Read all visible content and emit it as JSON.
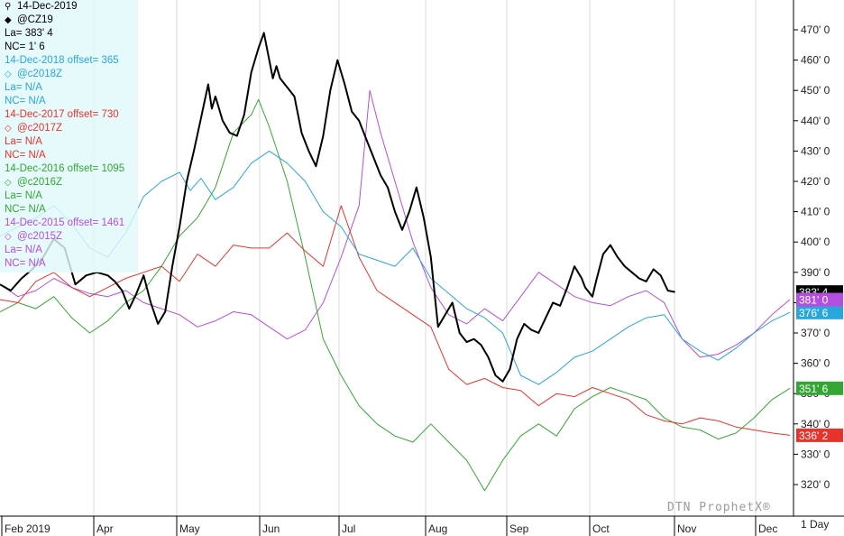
{
  "chart_data": {
    "type": "line",
    "header_date": "14-Dec-2019",
    "x_months": [
      "Feb 2019",
      "Apr",
      "May",
      "Jun",
      "Jul",
      "Aug",
      "Sep",
      "Oct",
      "Nov",
      "Dec"
    ],
    "y_ticks": [
      "470' 0",
      "460' 0",
      "450' 0",
      "440' 0",
      "430' 0",
      "420' 0",
      "410' 0",
      "400' 0",
      "390' 0",
      "380' 0",
      "370' 0",
      "360' 0",
      "350' 0",
      "340' 0",
      "330' 0",
      "320' 0"
    ],
    "ylim": [
      312,
      478
    ],
    "interval_label": "1 Day",
    "watermark": "DTN ProphetX®",
    "legend": {
      "symbol": "@CZ19",
      "last": "La= 383' 4",
      "net_change": "NC= 1' 6",
      "groups": [
        {
          "date_line": "14-Dec-2018 offset= 365",
          "symbol": "@c2018Z",
          "last": "La= N/A",
          "net_change": "NC= N/A"
        },
        {
          "date_line": "14-Dec-2017 offset= 730",
          "symbol": "@c2017Z",
          "last": "La= N/A",
          "net_change": "NC= N/A"
        },
        {
          "date_line": "14-Dec-2016 offset= 1095",
          "symbol": "@c2016Z",
          "last": "La= N/A",
          "net_change": "NC= N/A"
        },
        {
          "date_line": "14-Dec-2015 offset= 1461",
          "symbol": "@c2015Z",
          "last": "La= N/A",
          "net_change": "NC= N/A"
        }
      ]
    },
    "series": [
      {
        "name": "@CZ19",
        "color": "#000000",
        "last_label": "383' 4",
        "width": 2,
        "points": [
          [
            0,
            386
          ],
          [
            0.3,
            384
          ],
          [
            0.6,
            388
          ],
          [
            0.9,
            391
          ],
          [
            1.2,
            395
          ],
          [
            1.5,
            401
          ],
          [
            1.8,
            398
          ],
          [
            2.1,
            386
          ],
          [
            2.4,
            389
          ],
          [
            2.7,
            390
          ],
          [
            3.0,
            389
          ],
          [
            3.2,
            387
          ],
          [
            3.4,
            384
          ],
          [
            3.6,
            378
          ],
          [
            3.8,
            383
          ],
          [
            4.0,
            389
          ],
          [
            4.2,
            380
          ],
          [
            4.4,
            373
          ],
          [
            4.6,
            377
          ],
          [
            4.8,
            392
          ],
          [
            5.0,
            405
          ],
          [
            5.2,
            420
          ],
          [
            5.4,
            430
          ],
          [
            5.6,
            441
          ],
          [
            5.8,
            452
          ],
          [
            5.9,
            444
          ],
          [
            6.0,
            448
          ],
          [
            6.2,
            440
          ],
          [
            6.4,
            436
          ],
          [
            6.6,
            435
          ],
          [
            6.8,
            442
          ],
          [
            7.0,
            456
          ],
          [
            7.2,
            464
          ],
          [
            7.35,
            469
          ],
          [
            7.5,
            460
          ],
          [
            7.6,
            454
          ],
          [
            7.7,
            458
          ],
          [
            7.8,
            454
          ],
          [
            8.0,
            451
          ],
          [
            8.2,
            448
          ],
          [
            8.4,
            436
          ],
          [
            8.6,
            430
          ],
          [
            8.8,
            425
          ],
          [
            9.0,
            435
          ],
          [
            9.2,
            450
          ],
          [
            9.4,
            460
          ],
          [
            9.6,
            452
          ],
          [
            9.8,
            443
          ],
          [
            10.0,
            440
          ],
          [
            10.2,
            434
          ],
          [
            10.4,
            428
          ],
          [
            10.6,
            422
          ],
          [
            10.8,
            418
          ],
          [
            11.0,
            410
          ],
          [
            11.2,
            404
          ],
          [
            11.4,
            410
          ],
          [
            11.6,
            418
          ],
          [
            11.8,
            408
          ],
          [
            12.0,
            395
          ],
          [
            12.2,
            372
          ],
          [
            12.4,
            376
          ],
          [
            12.6,
            380
          ],
          [
            12.8,
            370
          ],
          [
            13.0,
            367
          ],
          [
            13.2,
            368
          ],
          [
            13.4,
            366
          ],
          [
            13.6,
            362
          ],
          [
            13.8,
            356
          ],
          [
            14.0,
            354
          ],
          [
            14.2,
            358
          ],
          [
            14.4,
            368
          ],
          [
            14.6,
            373
          ],
          [
            14.8,
            371
          ],
          [
            15.0,
            370
          ],
          [
            15.2,
            375
          ],
          [
            15.4,
            380
          ],
          [
            15.6,
            379
          ],
          [
            15.8,
            385
          ],
          [
            16.0,
            392
          ],
          [
            16.1,
            390
          ],
          [
            16.2,
            388
          ],
          [
            16.3,
            385
          ],
          [
            16.5,
            382
          ],
          [
            16.6,
            387
          ],
          [
            16.8,
            396
          ],
          [
            17.0,
            399
          ],
          [
            17.2,
            395
          ],
          [
            17.4,
            392
          ],
          [
            17.6,
            390
          ],
          [
            17.8,
            388
          ],
          [
            18.0,
            387
          ],
          [
            18.2,
            391
          ],
          [
            18.4,
            389
          ],
          [
            18.6,
            384
          ],
          [
            18.8,
            383.5
          ]
        ]
      },
      {
        "name": "@c2018Z",
        "color": "#29a6dc",
        "last_label": "376' 6",
        "points": [
          [
            0,
            402
          ],
          [
            0.5,
            405
          ],
          [
            1,
            408
          ],
          [
            1.5,
            412
          ],
          [
            2,
            406
          ],
          [
            2.5,
            398
          ],
          [
            3,
            395
          ],
          [
            3.5,
            403
          ],
          [
            4,
            415
          ],
          [
            4.5,
            420
          ],
          [
            5,
            423
          ],
          [
            5.3,
            417
          ],
          [
            5.6,
            421
          ],
          [
            6,
            414
          ],
          [
            6.5,
            418
          ],
          [
            7,
            426
          ],
          [
            7.5,
            430
          ],
          [
            8,
            426
          ],
          [
            8.5,
            420
          ],
          [
            9,
            410
          ],
          [
            9.5,
            405
          ],
          [
            10,
            396
          ],
          [
            10.5,
            394
          ],
          [
            11,
            392
          ],
          [
            11.5,
            398
          ],
          [
            12,
            388
          ],
          [
            12.5,
            383
          ],
          [
            13,
            378
          ],
          [
            13.5,
            375
          ],
          [
            14,
            370
          ],
          [
            14.5,
            356
          ],
          [
            15,
            353
          ],
          [
            15.5,
            357
          ],
          [
            16,
            362
          ],
          [
            16.5,
            364
          ],
          [
            17,
            368
          ],
          [
            17.5,
            372
          ],
          [
            18,
            375
          ],
          [
            18.5,
            376
          ],
          [
            19,
            368
          ],
          [
            19.5,
            364
          ],
          [
            20,
            361
          ],
          [
            20.5,
            365
          ],
          [
            21,
            370
          ],
          [
            21.5,
            374
          ],
          [
            22,
            376.75
          ]
        ]
      },
      {
        "name": "@c2017Z",
        "color": "#e8332d",
        "last_label": "336' 2",
        "points": [
          [
            0,
            381
          ],
          [
            0.5,
            380
          ],
          [
            1,
            387
          ],
          [
            1.5,
            390
          ],
          [
            2,
            385
          ],
          [
            2.5,
            382
          ],
          [
            3,
            385
          ],
          [
            3.5,
            388
          ],
          [
            4,
            390
          ],
          [
            4.5,
            392
          ],
          [
            5,
            387
          ],
          [
            5.5,
            396
          ],
          [
            6,
            392
          ],
          [
            6.5,
            399
          ],
          [
            7,
            398
          ],
          [
            7.5,
            398
          ],
          [
            8,
            403
          ],
          [
            8.5,
            397
          ],
          [
            9,
            392
          ],
          [
            9.5,
            412
          ],
          [
            10,
            395
          ],
          [
            10.5,
            384
          ],
          [
            11,
            380
          ],
          [
            11.5,
            376
          ],
          [
            12,
            372
          ],
          [
            12.5,
            358
          ],
          [
            13,
            353
          ],
          [
            13.5,
            355
          ],
          [
            14,
            352
          ],
          [
            14.5,
            351
          ],
          [
            15,
            346
          ],
          [
            15.5,
            350
          ],
          [
            16,
            349
          ],
          [
            16.5,
            352
          ],
          [
            17,
            350
          ],
          [
            17.5,
            348
          ],
          [
            18,
            343
          ],
          [
            18.5,
            341
          ],
          [
            19,
            340
          ],
          [
            19.5,
            342
          ],
          [
            20,
            341
          ],
          [
            20.5,
            339
          ],
          [
            21,
            338
          ],
          [
            21.5,
            337
          ],
          [
            22,
            336.25
          ]
        ]
      },
      {
        "name": "@c2016Z",
        "color": "#34a634",
        "last_label": "351' 6",
        "points": [
          [
            0,
            377
          ],
          [
            0.5,
            380
          ],
          [
            1,
            378
          ],
          [
            1.5,
            382
          ],
          [
            2,
            375
          ],
          [
            2.5,
            370
          ],
          [
            3,
            374
          ],
          [
            3.5,
            380
          ],
          [
            4,
            384
          ],
          [
            4.5,
            392
          ],
          [
            5,
            402
          ],
          [
            5.5,
            408
          ],
          [
            6,
            418
          ],
          [
            6.5,
            436
          ],
          [
            7,
            442
          ],
          [
            7.2,
            447
          ],
          [
            7.5,
            438
          ],
          [
            8,
            420
          ],
          [
            8.5,
            395
          ],
          [
            9,
            368
          ],
          [
            9.5,
            356
          ],
          [
            10,
            346
          ],
          [
            10.5,
            340
          ],
          [
            11,
            336
          ],
          [
            11.5,
            334
          ],
          [
            12,
            340
          ],
          [
            12.5,
            334
          ],
          [
            13,
            328
          ],
          [
            13.5,
            318
          ],
          [
            14,
            328
          ],
          [
            14.5,
            336
          ],
          [
            15,
            340
          ],
          [
            15.5,
            336
          ],
          [
            16,
            345
          ],
          [
            16.5,
            349
          ],
          [
            17,
            352
          ],
          [
            17.5,
            350
          ],
          [
            18,
            348
          ],
          [
            18.5,
            342
          ],
          [
            19,
            339
          ],
          [
            19.5,
            338
          ],
          [
            20,
            335
          ],
          [
            20.5,
            337
          ],
          [
            21,
            342
          ],
          [
            21.5,
            348
          ],
          [
            22,
            351.75
          ]
        ]
      },
      {
        "name": "@c2015Z",
        "color": "#b34ee0",
        "last_label": "381' 0",
        "points": [
          [
            0,
            386
          ],
          [
            0.5,
            382
          ],
          [
            1,
            384
          ],
          [
            1.5,
            388
          ],
          [
            2,
            385
          ],
          [
            2.5,
            383
          ],
          [
            3,
            382
          ],
          [
            3.5,
            384
          ],
          [
            4,
            380
          ],
          [
            4.5,
            378
          ],
          [
            5,
            376
          ],
          [
            5.5,
            372
          ],
          [
            6,
            374
          ],
          [
            6.5,
            377
          ],
          [
            7,
            376
          ],
          [
            7.5,
            372
          ],
          [
            8,
            368
          ],
          [
            8.5,
            371
          ],
          [
            9,
            380
          ],
          [
            9.5,
            395
          ],
          [
            10,
            412
          ],
          [
            10.3,
            450
          ],
          [
            10.6,
            436
          ],
          [
            11,
            420
          ],
          [
            11.5,
            400
          ],
          [
            12,
            385
          ],
          [
            12.5,
            376
          ],
          [
            13,
            373
          ],
          [
            13.5,
            378
          ],
          [
            14,
            374
          ],
          [
            14.5,
            382
          ],
          [
            15,
            390
          ],
          [
            15.5,
            386
          ],
          [
            16,
            382
          ],
          [
            16.5,
            380
          ],
          [
            17,
            379
          ],
          [
            17.5,
            382
          ],
          [
            18,
            384
          ],
          [
            18.5,
            380
          ],
          [
            19,
            368
          ],
          [
            19.5,
            362
          ],
          [
            20,
            363
          ],
          [
            20.5,
            366
          ],
          [
            21,
            370
          ],
          [
            21.5,
            376
          ],
          [
            22,
            381
          ]
        ]
      }
    ],
    "x_domain": [
      0,
      22
    ]
  }
}
